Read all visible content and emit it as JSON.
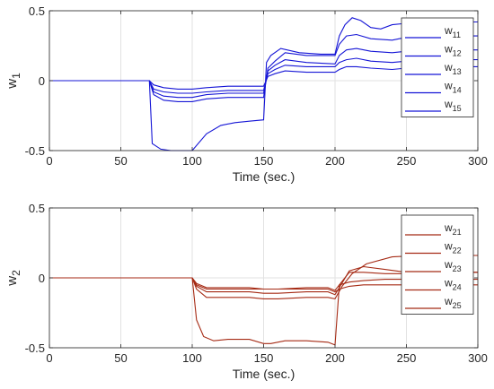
{
  "chart_data": [
    {
      "type": "line",
      "title": "",
      "xlabel": "Time (sec.)",
      "ylabel": {
        "base": "w",
        "sub": "1"
      },
      "xlim": [
        0,
        300
      ],
      "ylim": [
        -0.5,
        0.5
      ],
      "xticks": [
        "0",
        "50",
        "100",
        "150",
        "200",
        "250",
        "300"
      ],
      "yticks": [
        "-0.5",
        "0",
        "0.5"
      ],
      "grid": true,
      "legend_position": "top-right",
      "color": "#1515d6",
      "series": [
        {
          "name": {
            "base": "w",
            "sub": "11"
          },
          "x": [
            0,
            70,
            72,
            78,
            85,
            92,
            100,
            110,
            120,
            130,
            140,
            150,
            152,
            155,
            162,
            175,
            190,
            200,
            203,
            207,
            212,
            218,
            225,
            232,
            240,
            250,
            260,
            280,
            300
          ],
          "y": [
            0,
            0,
            -0.45,
            -0.49,
            -0.5,
            -0.5,
            -0.5,
            -0.38,
            -0.32,
            -0.3,
            -0.29,
            -0.28,
            0.13,
            0.18,
            0.23,
            0.2,
            0.19,
            0.19,
            0.32,
            0.4,
            0.45,
            0.43,
            0.38,
            0.37,
            0.4,
            0.41,
            0.42,
            0.42,
            0.42
          ]
        },
        {
          "name": {
            "base": "w",
            "sub": "12"
          },
          "x": [
            0,
            70,
            73,
            80,
            90,
            100,
            110,
            125,
            140,
            150,
            153,
            158,
            165,
            180,
            200,
            203,
            208,
            215,
            225,
            240,
            250,
            270,
            300
          ],
          "y": [
            0,
            0,
            -0.1,
            -0.14,
            -0.15,
            -0.15,
            -0.13,
            -0.12,
            -0.12,
            -0.12,
            0.09,
            0.14,
            0.2,
            0.18,
            0.18,
            0.26,
            0.32,
            0.33,
            0.3,
            0.29,
            0.31,
            0.32,
            0.32
          ]
        },
        {
          "name": {
            "base": "w",
            "sub": "13"
          },
          "x": [
            0,
            70,
            73,
            80,
            90,
            100,
            110,
            125,
            140,
            150,
            153,
            158,
            165,
            180,
            200,
            203,
            208,
            215,
            225,
            240,
            250,
            270,
            300
          ],
          "y": [
            0,
            0,
            -0.08,
            -0.11,
            -0.12,
            -0.12,
            -0.1,
            -0.09,
            -0.09,
            -0.09,
            0.07,
            0.11,
            0.15,
            0.13,
            0.12,
            0.18,
            0.22,
            0.23,
            0.21,
            0.2,
            0.21,
            0.22,
            0.22
          ]
        },
        {
          "name": {
            "base": "w",
            "sub": "14"
          },
          "x": [
            0,
            70,
            73,
            80,
            90,
            100,
            110,
            125,
            140,
            150,
            153,
            158,
            165,
            180,
            200,
            203,
            208,
            215,
            225,
            240,
            250,
            270,
            300
          ],
          "y": [
            0,
            0,
            -0.06,
            -0.08,
            -0.09,
            -0.09,
            -0.08,
            -0.07,
            -0.07,
            -0.07,
            0.05,
            0.08,
            0.11,
            0.1,
            0.1,
            0.13,
            0.15,
            0.16,
            0.14,
            0.13,
            0.14,
            0.15,
            0.15
          ]
        },
        {
          "name": {
            "base": "w",
            "sub": "15"
          },
          "x": [
            0,
            70,
            73,
            80,
            90,
            100,
            110,
            125,
            140,
            150,
            153,
            158,
            165,
            180,
            200,
            203,
            208,
            215,
            225,
            240,
            250,
            270,
            300
          ],
          "y": [
            0,
            0,
            -0.03,
            -0.05,
            -0.06,
            -0.06,
            -0.05,
            -0.04,
            -0.04,
            -0.04,
            0.03,
            0.05,
            0.07,
            0.06,
            0.06,
            0.08,
            0.1,
            0.1,
            0.09,
            0.08,
            0.09,
            0.1,
            0.1
          ]
        }
      ]
    },
    {
      "type": "line",
      "title": "",
      "xlabel": "Time (sec.)",
      "ylabel": {
        "base": "w",
        "sub": "2"
      },
      "xlim": [
        0,
        300
      ],
      "ylim": [
        -0.5,
        0.5
      ],
      "xticks": [
        "0",
        "50",
        "100",
        "150",
        "200",
        "250",
        "300"
      ],
      "yticks": [
        "-0.5",
        "0",
        "0.5"
      ],
      "grid": true,
      "legend_position": "top-right",
      "color": "#a52a14",
      "series": [
        {
          "name": {
            "base": "w",
            "sub": "21"
          },
          "x": [
            0,
            100,
            103,
            108,
            115,
            125,
            140,
            150,
            155,
            165,
            180,
            195,
            200,
            203,
            210,
            220,
            235,
            250,
            270,
            300
          ],
          "y": [
            0,
            0,
            -0.3,
            -0.42,
            -0.45,
            -0.44,
            -0.44,
            -0.47,
            -0.47,
            -0.45,
            -0.45,
            -0.46,
            -0.48,
            -0.05,
            0.04,
            0.04,
            0.03,
            0.03,
            0.04,
            0.04
          ]
        },
        {
          "name": {
            "base": "w",
            "sub": "22"
          },
          "x": [
            0,
            100,
            103,
            110,
            125,
            140,
            150,
            160,
            180,
            195,
            200,
            205,
            212,
            222,
            240,
            260,
            280,
            300
          ],
          "y": [
            0,
            0,
            -0.08,
            -0.14,
            -0.14,
            -0.14,
            -0.15,
            -0.15,
            -0.14,
            -0.14,
            -0.15,
            -0.06,
            0.03,
            0.1,
            0.15,
            0.16,
            0.16,
            0.16
          ]
        },
        {
          "name": {
            "base": "w",
            "sub": "23"
          },
          "x": [
            0,
            100,
            103,
            110,
            125,
            140,
            150,
            160,
            180,
            195,
            200,
            203,
            210,
            220,
            235,
            250,
            270,
            300
          ],
          "y": [
            0,
            0,
            -0.06,
            -0.1,
            -0.1,
            -0.1,
            -0.11,
            -0.11,
            -0.1,
            -0.1,
            -0.12,
            -0.07,
            0.05,
            0.08,
            0.06,
            0.04,
            0.04,
            0.04
          ]
        },
        {
          "name": {
            "base": "w",
            "sub": "24"
          },
          "x": [
            0,
            100,
            103,
            110,
            125,
            140,
            150,
            160,
            180,
            195,
            200,
            203,
            210,
            220,
            235,
            250,
            270,
            300
          ],
          "y": [
            0,
            0,
            -0.04,
            -0.07,
            -0.07,
            -0.07,
            -0.08,
            -0.08,
            -0.07,
            -0.07,
            -0.09,
            -0.05,
            -0.03,
            -0.02,
            -0.01,
            -0.01,
            -0.01,
            -0.01
          ]
        },
        {
          "name": {
            "base": "w",
            "sub": "25"
          },
          "x": [
            0,
            100,
            103,
            110,
            125,
            140,
            150,
            160,
            180,
            195,
            200,
            203,
            210,
            220,
            235,
            250,
            270,
            300
          ],
          "y": [
            0,
            0,
            -0.05,
            -0.08,
            -0.08,
            -0.08,
            -0.08,
            -0.08,
            -0.08,
            -0.08,
            -0.1,
            -0.08,
            -0.06,
            -0.05,
            -0.05,
            -0.05,
            -0.05,
            -0.05
          ]
        }
      ]
    }
  ]
}
